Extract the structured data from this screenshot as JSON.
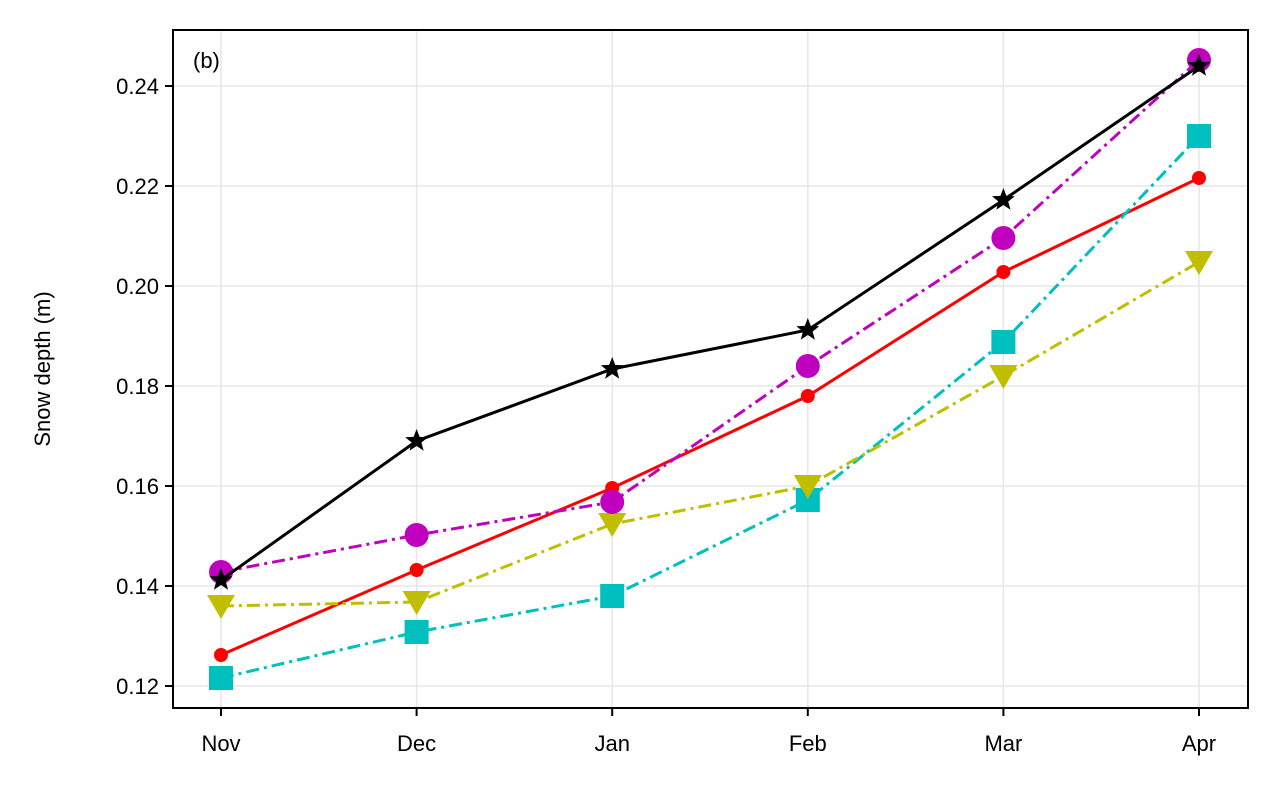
{
  "chart_data": {
    "type": "line",
    "panel_label": "(b)",
    "xlabel": "",
    "ylabel": "Snow depth (m)",
    "categories": [
      "Nov",
      "Dec",
      "Jan",
      "Feb",
      "Mar",
      "Apr"
    ],
    "ylim": [
      0.1156,
      0.2512
    ],
    "yticks": [
      0.12,
      0.14,
      0.16,
      0.18,
      0.2,
      0.22,
      0.24
    ],
    "ytick_labels": [
      "0.12",
      "0.14",
      "0.16",
      "0.18",
      "0.20",
      "0.22",
      "0.24"
    ],
    "grid": true,
    "series": [
      {
        "name": "red",
        "color": "#ff0000",
        "marker": "circle-small",
        "linestyle": "solid",
        "values": [
          0.1262,
          0.1432,
          0.1596,
          0.178,
          0.2028,
          0.2216
        ]
      },
      {
        "name": "cyan",
        "color": "#00bfbf",
        "marker": "square",
        "linestyle": "dashdot",
        "values": [
          0.1216,
          0.1308,
          0.138,
          0.1572,
          0.1888,
          0.23
        ]
      },
      {
        "name": "yellow",
        "color": "#bfbf00",
        "marker": "triangle-down",
        "linestyle": "dashdot",
        "values": [
          0.136,
          0.1368,
          0.1524,
          0.16,
          0.182,
          0.2048
        ]
      },
      {
        "name": "magenta",
        "color": "#bf00bf",
        "marker": "circle",
        "linestyle": "dashdot",
        "values": [
          0.1428,
          0.1502,
          0.1568,
          0.184,
          0.2096,
          0.2452
        ]
      },
      {
        "name": "black",
        "color": "#000000",
        "marker": "star",
        "linestyle": "solid",
        "values": [
          0.1412,
          0.169,
          0.1834,
          0.1912,
          0.2172,
          0.244
        ]
      }
    ]
  }
}
